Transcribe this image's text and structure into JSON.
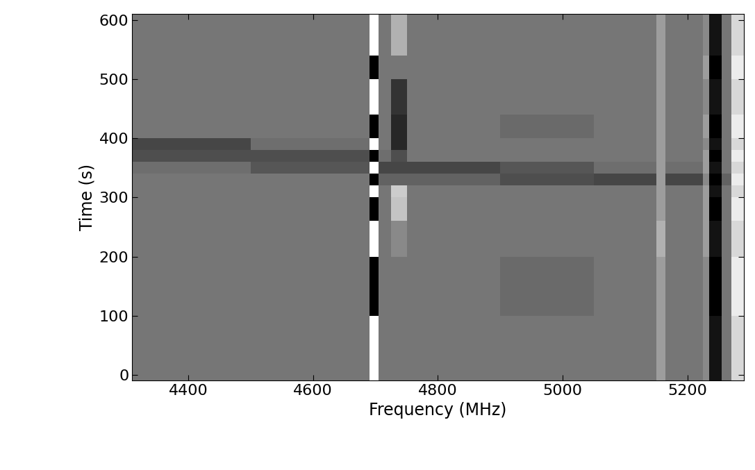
{
  "chart_data": {
    "type": "heatmap",
    "x_label": "Frequency (MHz)",
    "y_label": "Time (s)",
    "color": "gray",
    "xlim": [
      4310,
      5290
    ],
    "ylim": [
      -10,
      610
    ],
    "xticks": [
      4400,
      4600,
      4800,
      5000,
      5200
    ],
    "yticks": [
      0,
      100,
      200,
      300,
      400,
      500,
      600
    ],
    "x_edges": [
      4310,
      4500,
      4690,
      4705,
      4725,
      4750,
      4900,
      5050,
      5150,
      5165,
      5225,
      5235,
      5255,
      5270,
      5290
    ],
    "y_edges": [
      -10,
      100,
      200,
      260,
      300,
      320,
      340,
      360,
      380,
      400,
      440,
      500,
      540,
      610
    ],
    "cells": [
      [
        0.5,
        0.5,
        0.85,
        0.5,
        0.5,
        0.5,
        0.5,
        0.5,
        0.6,
        0.5,
        0.55,
        0.25,
        0.5,
        0.75
      ],
      [
        0.5,
        0.5,
        0.2,
        0.5,
        0.5,
        0.5,
        0.47,
        0.5,
        0.6,
        0.5,
        0.55,
        0.2,
        0.5,
        0.8
      ],
      [
        0.5,
        0.5,
        0.85,
        0.5,
        0.55,
        0.5,
        0.5,
        0.5,
        0.65,
        0.5,
        0.6,
        0.25,
        0.5,
        0.75
      ],
      [
        0.5,
        0.5,
        0.2,
        0.5,
        0.7,
        0.5,
        0.5,
        0.5,
        0.6,
        0.5,
        0.6,
        0.2,
        0.5,
        0.8
      ],
      [
        0.5,
        0.5,
        0.85,
        0.5,
        0.72,
        0.5,
        0.5,
        0.5,
        0.6,
        0.5,
        0.6,
        0.25,
        0.5,
        0.75
      ],
      [
        0.5,
        0.5,
        0.2,
        0.45,
        0.45,
        0.45,
        0.4,
        0.38,
        0.6,
        0.38,
        0.55,
        0.2,
        0.45,
        0.8
      ],
      [
        0.48,
        0.42,
        0.85,
        0.38,
        0.38,
        0.38,
        0.42,
        0.48,
        0.6,
        0.48,
        0.6,
        0.25,
        0.5,
        0.75
      ],
      [
        0.4,
        0.4,
        0.2,
        0.48,
        0.4,
        0.5,
        0.5,
        0.5,
        0.6,
        0.5,
        0.6,
        0.2,
        0.5,
        0.8
      ],
      [
        0.38,
        0.48,
        0.85,
        0.5,
        0.3,
        0.5,
        0.5,
        0.5,
        0.6,
        0.5,
        0.55,
        0.25,
        0.5,
        0.75
      ],
      [
        0.5,
        0.5,
        0.2,
        0.5,
        0.3,
        0.5,
        0.47,
        0.5,
        0.6,
        0.5,
        0.6,
        0.2,
        0.5,
        0.8
      ],
      [
        0.5,
        0.5,
        0.85,
        0.5,
        0.33,
        0.5,
        0.5,
        0.5,
        0.6,
        0.5,
        0.55,
        0.25,
        0.5,
        0.75
      ],
      [
        0.5,
        0.5,
        0.2,
        0.5,
        0.5,
        0.5,
        0.5,
        0.5,
        0.6,
        0.5,
        0.6,
        0.2,
        0.5,
        0.8
      ],
      [
        0.5,
        0.5,
        0.85,
        0.5,
        0.65,
        0.5,
        0.5,
        0.5,
        0.6,
        0.5,
        0.55,
        0.25,
        0.5,
        0.75
      ]
    ]
  }
}
